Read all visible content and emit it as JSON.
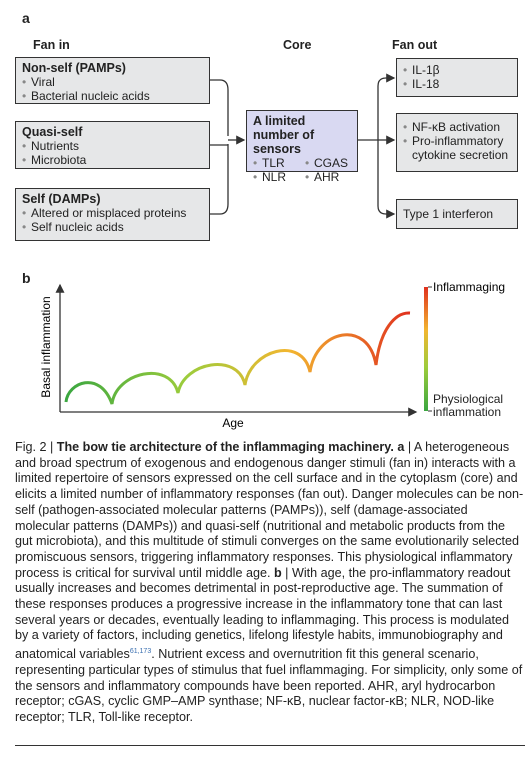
{
  "panel_a": {
    "label": "a",
    "headers": [
      "Fan in",
      "Core",
      "Fan out"
    ],
    "fan_in": [
      {
        "title": "Non-self (PAMPs)",
        "items": [
          "Viral",
          "Bacterial nucleic acids"
        ]
      },
      {
        "title": "Quasi-self",
        "items": [
          "Nutrients",
          "Microbiota"
        ]
      },
      {
        "title": "Self (DAMPs)",
        "items": [
          "Altered or misplaced proteins",
          "Self nucleic acids"
        ]
      }
    ],
    "core": {
      "title": "A limited number of sensors",
      "items": [
        "TLR",
        "CGAS",
        "NLR",
        "AHR"
      ]
    },
    "fan_out": [
      {
        "items": [
          "IL-1β",
          "IL-18"
        ]
      },
      {
        "items": [
          "NF-κB activation",
          "Pro-inflammatory cytokine secretion"
        ]
      },
      {
        "text": "Type 1 interferon"
      }
    ]
  },
  "panel_b": {
    "label": "b",
    "y_label": "Basal inflammation",
    "x_label": "Age",
    "top_label": "Inflammaging",
    "bottom_label": "Physiological inflammation"
  },
  "caption": [
    "Fig. 2 | ",
    "The bow tie architecture of the inflammaging machinery.",
    " ",
    "a",
    " | A heterogeneous and broad spectrum of exogenous and endogenous danger stimuli (fan in) interacts with a limited repertoire of sensors expressed on the cell surface and in the cytoplasm (core) and elicits a limited number of inflammatory responses (fan out). Danger molecules can be non-self (pathogen-associated molecular patterns (PAMPs)), self (damage-associated molecular patterns (DAMPs)) and quasi-self (nutritional and metabolic products from the gut microbiota), and this multitude of stimuli converges on the same evolutionarily selected promiscuous sensors, triggering inflammatory responses. This physiological inflammatory process is critical for survival until middle age. ",
    "b",
    " | With age, the pro-inflammatory readout usually increases and becomes detrimental in post-reproductive age. The summation of these responses produces a progressive increase in the inflammatory tone that can last several years or decades, eventually leading to inflammaging. This process is modulated by a variety of factors, including genetics, lifelong lifestyle habits, immunobiography and anatomical variables",
    "61,173",
    ". Nutrient excess and overnutrition fit this general scenario, representing particular types of stimulus that fuel inflammaging. For simplicity, only some of the sensors and inflammatory compounds have been reported. AHR, aryl hydrocarbon receptor; cGAS, cyclic GMP–AMP synthase; NF-κB, nuclear factor-κB; NLR, NOD-like receptor; TLR, Toll-like receptor."
  ]
}
